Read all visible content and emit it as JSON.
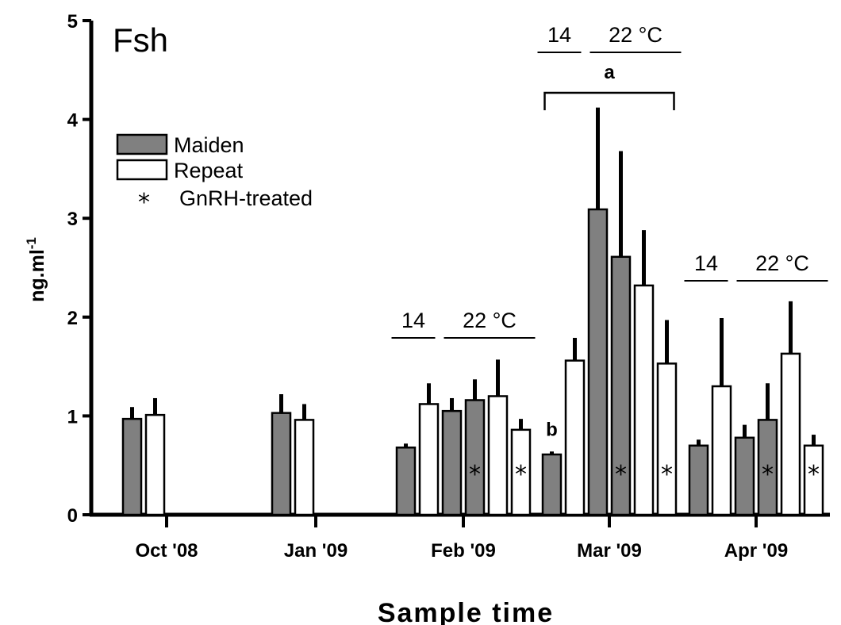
{
  "chart_data": {
    "type": "bar",
    "title": "Fsh",
    "xlabel": "Sample time",
    "ylabel": "ng.ml",
    "ylabel_superscript": "-1",
    "ylim": [
      0,
      5
    ],
    "yticks": [
      "0",
      "1",
      "2",
      "3",
      "4",
      "5"
    ],
    "grid": false,
    "legend": {
      "position": "top-left",
      "entries": [
        {
          "name": "Maiden",
          "color": "#808080"
        },
        {
          "name": "Repeat",
          "color": "#ffffff"
        },
        {
          "name": "GnRH-treated",
          "symbol": "*"
        }
      ]
    },
    "categories": [
      "Oct '08",
      "Jan '09",
      "Feb '09",
      "Mar '09",
      "Apr '09"
    ],
    "groups": [
      {
        "category": "Oct '08",
        "temp_labels": [],
        "bars": [
          {
            "series": "Maiden",
            "value": 0.97,
            "error": 0.12
          },
          {
            "series": "Repeat",
            "value": 1.01,
            "error": 0.17
          }
        ]
      },
      {
        "category": "Jan '09",
        "temp_labels": [],
        "bars": [
          {
            "series": "Maiden",
            "value": 1.03,
            "error": 0.19
          },
          {
            "series": "Repeat",
            "value": 0.96,
            "error": 0.16
          }
        ]
      },
      {
        "category": "Feb '09",
        "temp_labels": [
          "14",
          "22 °C"
        ],
        "bars": [
          {
            "series": "Maiden",
            "value": 0.68,
            "error": 0.04,
            "temp": "14"
          },
          {
            "series": "Repeat",
            "value": 1.12,
            "error": 0.21,
            "temp": "14"
          },
          {
            "series": "Maiden",
            "value": 1.05,
            "error": 0.13,
            "temp": "22 °C"
          },
          {
            "series": "Maiden",
            "value": 1.16,
            "error": 0.21,
            "temp": "22 °C",
            "gnrh": true
          },
          {
            "series": "Repeat",
            "value": 1.2,
            "error": 0.37,
            "temp": "22 °C"
          },
          {
            "series": "Repeat",
            "value": 0.86,
            "error": 0.11,
            "temp": "22 °C",
            "gnrh": true
          }
        ]
      },
      {
        "category": "Mar '09",
        "temp_labels": [
          "14",
          "22 °C"
        ],
        "bars": [
          {
            "series": "Maiden",
            "value": 0.61,
            "error": 0.03,
            "temp": "14",
            "sig": "b"
          },
          {
            "series": "Repeat",
            "value": 1.56,
            "error": 0.23,
            "temp": "14"
          },
          {
            "series": "Maiden",
            "value": 3.09,
            "error": 1.03,
            "temp": "22 °C"
          },
          {
            "series": "Maiden",
            "value": 2.61,
            "error": 1.07,
            "temp": "22 °C",
            "gnrh": true
          },
          {
            "series": "Repeat",
            "value": 2.32,
            "error": 0.56,
            "temp": "22 °C"
          },
          {
            "series": "Repeat",
            "value": 1.53,
            "error": 0.44,
            "temp": "22 °C",
            "gnrh": true
          }
        ],
        "bracket_label": "a"
      },
      {
        "category": "Apr '09",
        "temp_labels": [
          "14",
          "22 °C"
        ],
        "bars": [
          {
            "series": "Maiden",
            "value": 0.7,
            "error": 0.06,
            "temp": "14"
          },
          {
            "series": "Repeat",
            "value": 1.3,
            "error": 0.69,
            "temp": "14"
          },
          {
            "series": "Maiden",
            "value": 0.78,
            "error": 0.13,
            "temp": "22 °C"
          },
          {
            "series": "Maiden",
            "value": 0.96,
            "error": 0.37,
            "temp": "22 °C",
            "gnrh": true
          },
          {
            "series": "Repeat",
            "value": 1.63,
            "error": 0.53,
            "temp": "22 °C"
          },
          {
            "series": "Repeat",
            "value": 0.7,
            "error": 0.11,
            "temp": "22 °C",
            "gnrh": true
          }
        ]
      }
    ]
  }
}
